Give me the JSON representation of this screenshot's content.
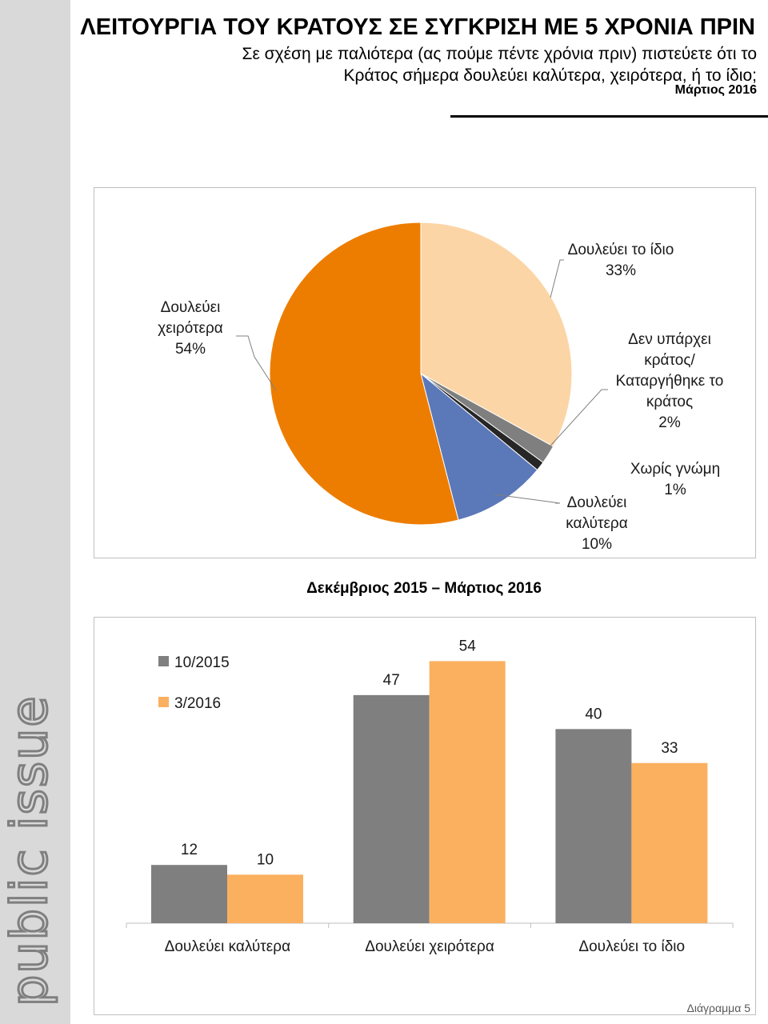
{
  "header": {
    "title": "ΛΕΙΤΟΥΡΓΙΑ ΤΟΥ ΚΡΑΤΟΥΣ ΣΕ ΣΥΓΚΡΙΣΗ ΜΕ 5 ΧΡΟΝΙΑ ΠΡΙΝ",
    "subtitle": "Σε σχέση με παλιότερα (ας πούμε πέντε χρόνια πριν) πιστεύετε ότι το Κράτος σήμερα δουλεύει καλύτερα, χειρότερα, ή το ίδιο;",
    "date": "Μάρτιος 2016"
  },
  "brand": {
    "logo_text": "public issue"
  },
  "footer": {
    "label": "Διάγραμμα 5"
  },
  "chart_data": [
    {
      "type": "pie",
      "title": "Μάρτιος 2016",
      "slices": [
        {
          "label": "Δουλεύει το ίδιο",
          "value": 33,
          "value_label": "33%",
          "color": "#fcd5a6"
        },
        {
          "label": "Δεν υπάρχει κράτος/ Καταργήθηκε το κράτος",
          "value": 2,
          "value_label": "2%",
          "color": "#7f7f7f"
        },
        {
          "label": "Χωρίς γνώμη",
          "value": 1,
          "value_label": "1%",
          "color": "#262626"
        },
        {
          "label": "Δουλεύει καλύτερα",
          "value": 10,
          "value_label": "10%",
          "color": "#5b78b9"
        },
        {
          "label": "Δουλεύει χειρότερα",
          "value": 54,
          "value_label": "54%",
          "color": "#ed7d01"
        }
      ]
    },
    {
      "type": "bar",
      "title": "Δεκέμβριος 2015 – Μάρτιος 2016",
      "categories": [
        "Δουλεύει καλύτερα",
        "Δουλεύει χειρότερα",
        "Δουλεύει το ίδιο"
      ],
      "series": [
        {
          "name": "10/2015",
          "values": [
            12,
            47,
            40
          ],
          "color": "#7f7f7f"
        },
        {
          "name": "3/2016",
          "values": [
            10,
            54,
            33
          ],
          "color": "#fbb05f"
        }
      ],
      "ylim": [
        0,
        60
      ],
      "legend": "top-left"
    }
  ]
}
